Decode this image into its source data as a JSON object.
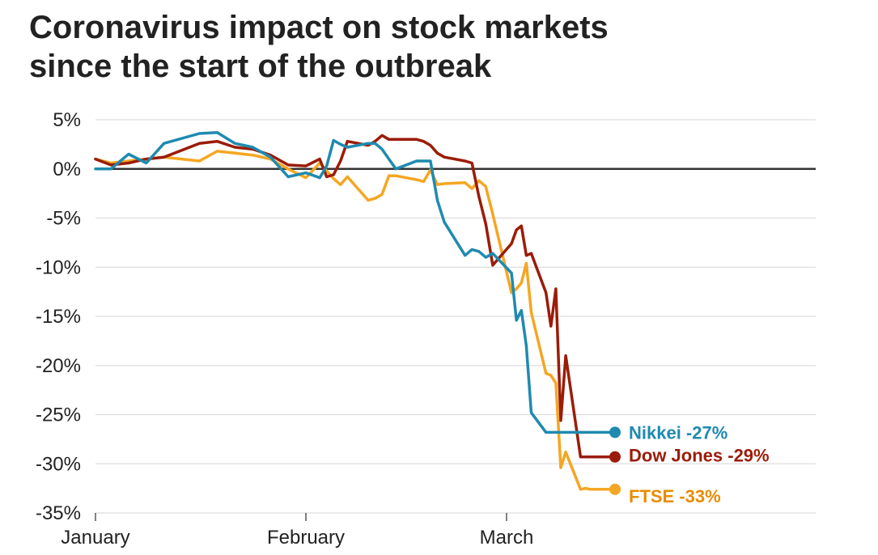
{
  "title_lines": [
    "Coronavirus impact on stock markets",
    "since the start of the outbreak"
  ],
  "chart_data": {
    "type": "line",
    "title": "Coronavirus impact on stock markets since the start of the outbreak",
    "xlabel": "",
    "ylabel": "",
    "ylim": [
      -35,
      5
    ],
    "yticks": [
      5,
      0,
      -5,
      -10,
      -15,
      -20,
      -25,
      -30,
      -35
    ],
    "ytick_labels": [
      "5%",
      "0%",
      "-5%",
      "-10%",
      "-15%",
      "-20%",
      "-25%",
      "-30%",
      "-35%"
    ],
    "grid": true,
    "x_range": [
      "2020-01-20",
      "2020-03-23"
    ],
    "x_ticks": [
      {
        "date": "2020-01-20",
        "label": "January"
      },
      {
        "date": "2020-02-01",
        "label": "February"
      },
      {
        "date": "2020-03-01",
        "label": "March"
      }
    ],
    "series": [
      {
        "name": "FTSE",
        "end_label": "FTSE -33%",
        "color": "#f5a623",
        "label_color": "#e88c00",
        "x": [
          "2020-01-20",
          "2020-01-21",
          "2020-01-22",
          "2020-01-23",
          "2020-01-24",
          "2020-01-26",
          "2020-01-27",
          "2020-01-28",
          "2020-01-29",
          "2020-01-30",
          "2020-01-31",
          "2020-02-01",
          "2020-02-03",
          "2020-02-04",
          "2020-02-05",
          "2020-02-06",
          "2020-02-07",
          "2020-02-10",
          "2020-02-11",
          "2020-02-12",
          "2020-02-13",
          "2020-02-14",
          "2020-02-17",
          "2020-02-18",
          "2020-02-19",
          "2020-02-20",
          "2020-02-21",
          "2020-02-24",
          "2020-02-25",
          "2020-02-26",
          "2020-02-27",
          "2020-02-28",
          "2020-03-02",
          "2020-03-03",
          "2020-03-04",
          "2020-03-05",
          "2020-03-06",
          "2020-03-09",
          "2020-03-10",
          "2020-03-11",
          "2020-03-12",
          "2020-03-13",
          "2020-03-16",
          "2020-03-17",
          "2020-03-18",
          "2020-03-19",
          "2020-03-20",
          "2020-03-23"
        ],
        "values": [
          1.0,
          0.6,
          0.8,
          1.0,
          1.2,
          0.8,
          1.8,
          1.6,
          1.4,
          1.0,
          0.0,
          -0.9,
          0.6,
          -0.2,
          -1.0,
          -1.6,
          -0.8,
          -3.2,
          -3.0,
          -2.6,
          -0.7,
          -0.7,
          -1.1,
          -1.3,
          -0.1,
          -1.6,
          -1.5,
          -1.4,
          -2.0,
          -1.2,
          -1.8,
          -4.6,
          -12.6,
          -12.2,
          -11.6,
          -9.6,
          -14.6,
          -20.8,
          -21.0,
          -21.8,
          -30.4,
          -28.8,
          -32.6,
          -32.5,
          -32.6,
          -32.6,
          -32.6,
          -32.6
        ]
      },
      {
        "name": "Dow Jones",
        "end_label": "Dow Jones -29%",
        "color": "#9b1c08",
        "label_color": "#9b1c08",
        "x": [
          "2020-01-20",
          "2020-01-21",
          "2020-01-22",
          "2020-01-23",
          "2020-01-24",
          "2020-01-26",
          "2020-01-27",
          "2020-01-28",
          "2020-01-29",
          "2020-01-30",
          "2020-01-31",
          "2020-02-01",
          "2020-02-03",
          "2020-02-04",
          "2020-02-05",
          "2020-02-06",
          "2020-02-07",
          "2020-02-10",
          "2020-02-11",
          "2020-02-12",
          "2020-02-13",
          "2020-02-14",
          "2020-02-17",
          "2020-02-18",
          "2020-02-19",
          "2020-02-20",
          "2020-02-21",
          "2020-02-24",
          "2020-02-25",
          "2020-02-26",
          "2020-02-27",
          "2020-02-28",
          "2020-03-02",
          "2020-03-03",
          "2020-03-04",
          "2020-03-05",
          "2020-03-06",
          "2020-03-09",
          "2020-03-10",
          "2020-03-11",
          "2020-03-12",
          "2020-03-13",
          "2020-03-16",
          "2020-03-17",
          "2020-03-18",
          "2020-03-19",
          "2020-03-20",
          "2020-03-23"
        ],
        "values": [
          1.0,
          0.4,
          0.6,
          1.0,
          1.2,
          2.6,
          2.8,
          2.2,
          2.0,
          1.4,
          0.4,
          0.3,
          1.0,
          -0.8,
          -0.6,
          0.8,
          2.8,
          2.4,
          2.8,
          3.4,
          3.0,
          3.0,
          3.0,
          2.8,
          2.4,
          1.6,
          1.2,
          0.8,
          0.6,
          -2.8,
          -5.6,
          -9.8,
          -7.6,
          -6.2,
          -5.8,
          -8.8,
          -8.6,
          -12.6,
          -16.0,
          -12.2,
          -25.6,
          -19.0,
          -29.3,
          -29.3,
          -29.3,
          -29.3,
          -29.3,
          -29.3
        ]
      },
      {
        "name": "Nikkei",
        "end_label": "Nikkei -27%",
        "color": "#1f8ab0",
        "label_color": "#1f8ab0",
        "x": [
          "2020-01-20",
          "2020-01-21",
          "2020-01-22",
          "2020-01-23",
          "2020-01-24",
          "2020-01-26",
          "2020-01-27",
          "2020-01-28",
          "2020-01-29",
          "2020-01-30",
          "2020-01-31",
          "2020-02-01",
          "2020-02-03",
          "2020-02-04",
          "2020-02-05",
          "2020-02-06",
          "2020-02-07",
          "2020-02-10",
          "2020-02-11",
          "2020-02-12",
          "2020-02-13",
          "2020-02-14",
          "2020-02-17",
          "2020-02-18",
          "2020-02-19",
          "2020-02-20",
          "2020-02-21",
          "2020-02-24",
          "2020-02-25",
          "2020-02-26",
          "2020-02-27",
          "2020-02-28",
          "2020-03-02",
          "2020-03-03",
          "2020-03-04",
          "2020-03-05",
          "2020-03-06",
          "2020-03-09",
          "2020-03-10",
          "2020-03-11",
          "2020-03-12",
          "2020-03-13",
          "2020-03-16",
          "2020-03-17",
          "2020-03-18",
          "2020-03-19",
          "2020-03-20",
          "2020-03-23"
        ],
        "values": [
          0.0,
          0.0,
          1.5,
          0.6,
          2.6,
          3.6,
          3.7,
          2.6,
          2.2,
          1.2,
          -0.8,
          -0.4,
          -0.9,
          0.3,
          2.9,
          2.5,
          2.2,
          2.6,
          2.6,
          2.0,
          1.0,
          0.0,
          0.8,
          0.8,
          0.8,
          -3.2,
          -5.4,
          -8.8,
          -8.2,
          -8.4,
          -9.0,
          -8.6,
          -10.6,
          -15.4,
          -14.4,
          -18.0,
          -24.8,
          -26.8,
          -26.8,
          -26.8,
          -26.8,
          -26.8,
          -26.8,
          -26.8,
          -26.8,
          -26.8,
          -26.8,
          -26.8
        ]
      }
    ]
  }
}
